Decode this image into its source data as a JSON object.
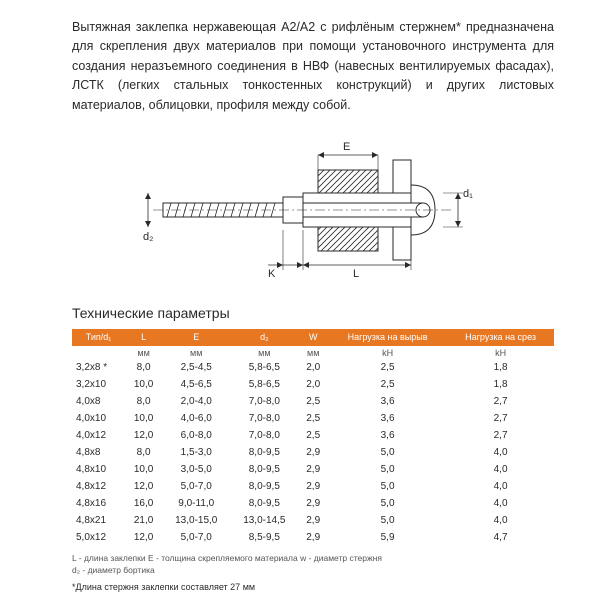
{
  "description": "Вытяжная заклепка нержавеющая А2/А2 с рифлёным стержнем* предназначена для скрепления двух материалов при помощи установочного инструмента для создания неразъемного соединения в НВФ (навесных вентилируемых фасадах), ЛСТК (легких стальных тонкостенных конструкций) и других листовых материалов, облицовки, профиля между собой.",
  "diagram": {
    "labels": {
      "E": "E",
      "d1": "d₁",
      "d2": "d₂",
      "K": "K",
      "L": "L"
    },
    "stroke": "#2a2a2a",
    "fill": "#ffffff",
    "hatch": "#2a2a2a"
  },
  "section_title": "Технические параметры",
  "table": {
    "header_bg": "#e87722",
    "header_color": "#ffffff",
    "columns": [
      "Тип/d₁",
      "L",
      "E",
      "d₂",
      "W",
      "Нагрузка на вырыв",
      "Нагрузка на срез"
    ],
    "units": [
      "",
      "мм",
      "мм",
      "мм",
      "мм",
      "kH",
      "kH"
    ],
    "rows": [
      [
        "3,2x8  *",
        "8,0",
        "2,5-4,5",
        "5,8-6,5",
        "2,0",
        "2,5",
        "1,8"
      ],
      [
        "3,2x10",
        "10,0",
        "4,5-6,5",
        "5,8-6,5",
        "2,0",
        "2,5",
        "1,8"
      ],
      [
        "4,0x8",
        "8,0",
        "2,0-4,0",
        "7,0-8,0",
        "2,5",
        "3,6",
        "2,7"
      ],
      [
        "4,0x10",
        "10,0",
        "4,0-6,0",
        "7,0-8,0",
        "2,5",
        "3,6",
        "2,7"
      ],
      [
        "4,0x12",
        "12,0",
        "6,0-8,0",
        "7,0-8,0",
        "2,5",
        "3,6",
        "2,7"
      ],
      [
        "4,8x8",
        "8,0",
        "1,5-3,0",
        "8,0-9,5",
        "2,9",
        "5,0",
        "4,0"
      ],
      [
        "4,8x10",
        "10,0",
        "3,0-5,0",
        "8,0-9,5",
        "2,9",
        "5,0",
        "4,0"
      ],
      [
        "4,8x12",
        "12,0",
        "5,0-7,0",
        "8,0-9,5",
        "2,9",
        "5,0",
        "4,0"
      ],
      [
        "4,8x16",
        "16,0",
        "9,0-11,0",
        "8,0-9,5",
        "2,9",
        "5,0",
        "4,0"
      ],
      [
        "4,8x21",
        "21,0",
        "13,0-15,0",
        "13,0-14,5",
        "2,9",
        "5,0",
        "4,0"
      ],
      [
        "5,0x12",
        "12,0",
        "5,0-7,0",
        "8,5-9,5",
        "2,9",
        "5,9",
        "4,7"
      ]
    ]
  },
  "legend": "L - длина заклепки      E - толщина скрепляемого материала      w - диаметр стержня\nd₂ - диаметр бортика",
  "footnote": "*Длина стержня заклепки составляет 27 мм"
}
